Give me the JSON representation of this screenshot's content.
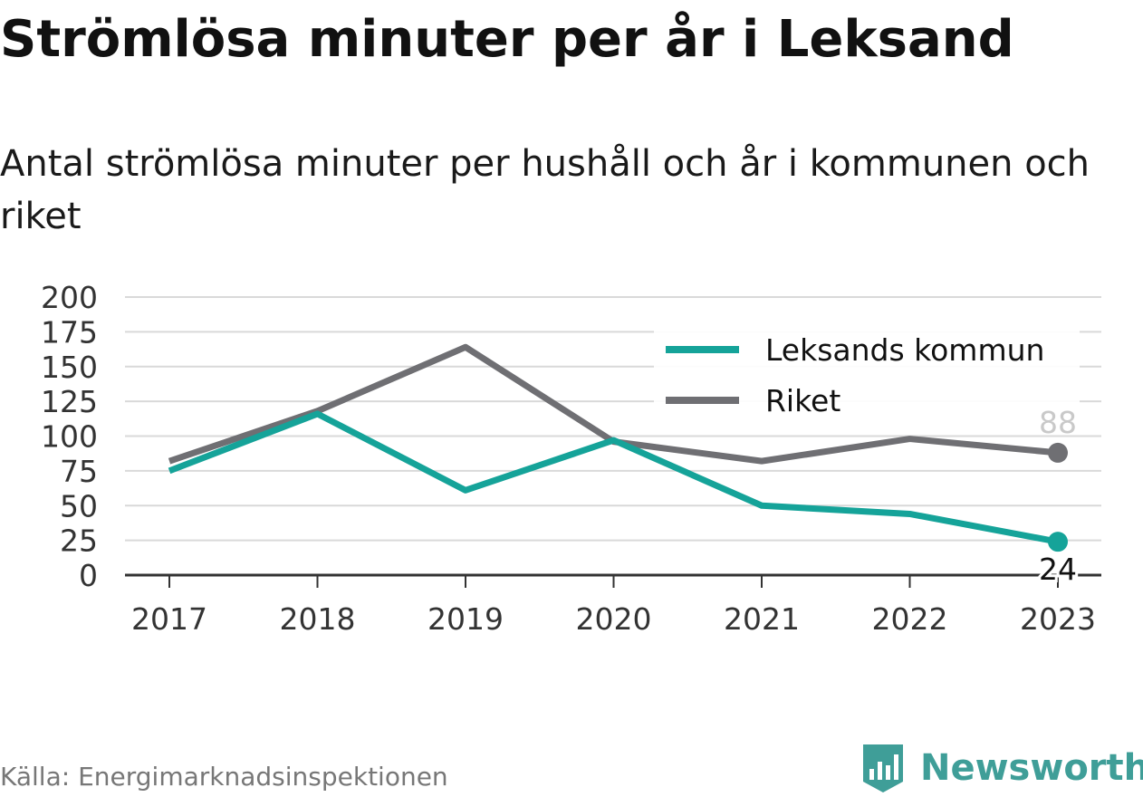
{
  "title": "Strömlösa minuter per år i Leksand",
  "subtitle": "Antal strömlösa minuter per hushåll och år i kommunen och riket",
  "source": "Källa: Energimarknadsinspektionen",
  "brand": {
    "name": "Newsworthy",
    "logo_icon": "newsworthy-logo-icon",
    "color": "#3f9e98"
  },
  "colors": {
    "leksand": "#15a399",
    "riket": "#6f6f73",
    "grid": "#d9d9d9",
    "axis": "#333333"
  },
  "chart_data": {
    "type": "line",
    "title": "Strömlösa minuter per år i Leksand",
    "subtitle": "Antal strömlösa minuter per hushåll och år i kommunen och riket",
    "x": [
      "2017",
      "2018",
      "2019",
      "2020",
      "2021",
      "2022",
      "2023"
    ],
    "ylim": [
      0,
      200
    ],
    "yticks": [
      0,
      25,
      50,
      75,
      100,
      125,
      150,
      175,
      200
    ],
    "grid": true,
    "legend": "top-right",
    "series": [
      {
        "name": "Leksands kommun",
        "color": "#15a399",
        "values": [
          75,
          116,
          61,
          97,
          50,
          44,
          24
        ],
        "end_label": "24"
      },
      {
        "name": "Riket",
        "color": "#6f6f73",
        "values": [
          82,
          118,
          164,
          96,
          82,
          98,
          88
        ],
        "end_label": "88"
      }
    ]
  }
}
